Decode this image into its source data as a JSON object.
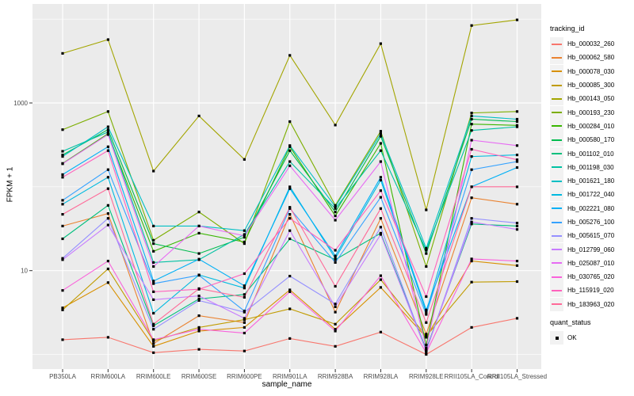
{
  "figure": {
    "bg": "#FFFFFF",
    "panel_bg": "#EBEBEB",
    "grid_color": "#FFFFFF",
    "tick_color": "#333333",
    "tick_label_color": "#4D4D4D",
    "text_color": "#000000",
    "point_color": "#000000",
    "legend_key_bg": "#F2F2F2"
  },
  "chart_data": {
    "type": "line",
    "title": "",
    "xlabel": "sample_name",
    "ylabel": "FPKM + 1",
    "grid": true,
    "y_scale": "log10",
    "ylim": [
      0.7,
      15000
    ],
    "y_ticks": [
      {
        "value": 10,
        "label": "10"
      },
      {
        "value": 1000,
        "label": "1000"
      }
    ],
    "y_minor_gridlines": [
      1,
      100,
      10000
    ],
    "categories": [
      "PB350LA",
      "RRIM600LA",
      "RRIM600LE",
      "RRIM600SE",
      "RRIM600PE",
      "RRIM901LA",
      "RRIM928BA",
      "RRIM928LA",
      "RRIM928LE",
      "RRII105LA_Control",
      "RRII105LA_Stressed"
    ],
    "legend": {
      "position": "right",
      "color_title": "tracking_id",
      "shape_title": "quant_status",
      "shape_items": [
        {
          "label": "OK",
          "shape": "square",
          "color": "#000000"
        }
      ]
    },
    "series": [
      {
        "name": "Hb_000032_260",
        "color": "#F8766D",
        "values": [
          1.5,
          1.6,
          1.05,
          1.15,
          1.1,
          1.55,
          1.25,
          1.85,
          1.0,
          2.1,
          2.7
        ]
      },
      {
        "name": "Hb_000062_580",
        "color": "#EA8331",
        "values": [
          34,
          48,
          1.35,
          2.9,
          2.4,
          47,
          3.2,
          42,
          1.75,
          74,
          62
        ]
      },
      {
        "name": "Hb_000078_030",
        "color": "#D89000",
        "values": [
          3.6,
          7.2,
          1.25,
          1.9,
          2.1,
          5.9,
          2.0,
          6.3,
          1.6,
          13,
          11.5
        ]
      },
      {
        "name": "Hb_000085_300",
        "color": "#C09B00",
        "values": [
          3.4,
          10.5,
          1.45,
          2.1,
          2.6,
          3.5,
          2.3,
          7.8,
          1.65,
          7.3,
          7.4
        ]
      },
      {
        "name": "Hb_000143_050",
        "color": "#A3A500",
        "values": [
          3900,
          5700,
          154,
          700,
          212,
          3700,
          545,
          5100,
          53,
          8400,
          9800
        ]
      },
      {
        "name": "Hb_000193_230",
        "color": "#7CAE00",
        "values": [
          480,
          790,
          23,
          50,
          21,
          600,
          60,
          460,
          11.2,
          760,
          790
        ]
      },
      {
        "name": "Hb_000284_010",
        "color": "#39B600",
        "values": [
          190,
          430,
          17,
          28,
          22,
          300,
          45,
          330,
          1.3,
          560,
          540
        ]
      },
      {
        "name": "Hb_000580_170",
        "color": "#00BB4E",
        "values": [
          240,
          480,
          21,
          16,
          25,
          270,
          50,
          400,
          16,
          640,
          600
        ]
      },
      {
        "name": "Hb_001102_010",
        "color": "#00BF7D",
        "values": [
          24,
          60,
          2.2,
          4.6,
          5.2,
          24,
          13.5,
          28,
          1.15,
          36,
          34
        ]
      },
      {
        "name": "Hb_001198_030",
        "color": "#00C1A3",
        "values": [
          265,
          450,
          12.5,
          13.5,
          27,
          200,
          55,
          270,
          17.5,
          470,
          520
        ]
      },
      {
        "name": "Hb_001621_180",
        "color": "#00BFC4",
        "values": [
          230,
          520,
          34,
          34,
          30,
          310,
          58,
          430,
          18.5,
          700,
          640
        ]
      },
      {
        "name": "Hb_001722_040",
        "color": "#00BAE0",
        "values": [
          62,
          130,
          3.1,
          8.9,
          6.2,
          100,
          14,
          120,
          3.2,
          230,
          240
        ]
      },
      {
        "name": "Hb_002221_080",
        "color": "#00B0F6",
        "values": [
          140,
          300,
          7.5,
          13.7,
          6.6,
          95,
          15,
          130,
          3.4,
          100,
          170
        ]
      },
      {
        "name": "Hb_005276_100",
        "color": "#35A2FF",
        "values": [
          69,
          160,
          7.0,
          8.8,
          3.3,
          55,
          12.5,
          75,
          3.0,
          160,
          200
        ]
      },
      {
        "name": "Hb_005615_070",
        "color": "#9590FF",
        "values": [
          14,
          42,
          2.0,
          4.4,
          3.2,
          8.6,
          4.0,
          33,
          1.1,
          42,
          37
        ]
      },
      {
        "name": "Hb_012799_060",
        "color": "#C77CFF",
        "values": [
          13.5,
          35,
          4.5,
          5.0,
          2.7,
          30,
          3.7,
          27,
          1.1,
          38,
          31
        ]
      },
      {
        "name": "Hb_025087_010",
        "color": "#E76BF3",
        "values": [
          188,
          420,
          11.2,
          34,
          26,
          178,
          40,
          200,
          1.2,
          360,
          310
        ]
      },
      {
        "name": "Hb_030765_020",
        "color": "#FA62DB",
        "values": [
          5.8,
          13,
          1.5,
          2.0,
          1.8,
          5.6,
          1.9,
          8.7,
          1.05,
          13.8,
          13
        ]
      },
      {
        "name": "Hb_115919_020",
        "color": "#FF62BC",
        "values": [
          130,
          270,
          5.6,
          6.0,
          9.2,
          42,
          17.5,
          90,
          4.9,
          280,
          210
        ]
      },
      {
        "name": "Hb_183963_020",
        "color": "#FF6A98",
        "values": [
          47,
          95,
          2.3,
          6.1,
          4.8,
          57,
          6.5,
          55,
          2.4,
          100,
          100
        ]
      }
    ]
  }
}
